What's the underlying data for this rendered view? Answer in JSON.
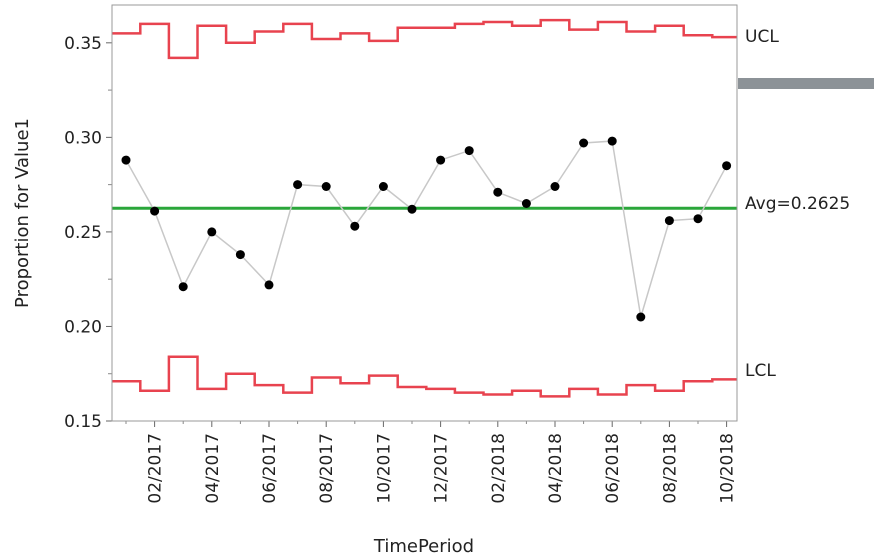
{
  "chart_data": {
    "type": "line",
    "title": "",
    "xlabel": "TimePeriod",
    "ylabel": "Proportion for Value1",
    "ylim": [
      0.15,
      0.37
    ],
    "y_ticks": [
      "0.15",
      "0.20",
      "0.25",
      "0.30",
      "0.35"
    ],
    "y_tick_values": [
      0.15,
      0.2,
      0.25,
      0.3,
      0.35
    ],
    "x_tick_labels": [
      "02/2017",
      "04/2017",
      "06/2017",
      "08/2017",
      "10/2017",
      "12/2017",
      "02/2018",
      "04/2018",
      "06/2018",
      "08/2018",
      "10/2018"
    ],
    "x_tick_indices": [
      1,
      3,
      5,
      7,
      9,
      11,
      13,
      15,
      17,
      19,
      21
    ],
    "periods": [
      "01/2017",
      "02/2017",
      "03/2017",
      "04/2017",
      "05/2017",
      "06/2017",
      "07/2017",
      "08/2017",
      "09/2017",
      "10/2017",
      "11/2017",
      "12/2017",
      "01/2018",
      "02/2018",
      "03/2018",
      "04/2018",
      "05/2018",
      "06/2018",
      "07/2018",
      "08/2018",
      "09/2018",
      "10/2018"
    ],
    "series": [
      {
        "values": [
          0.288,
          0.261,
          0.221,
          0.25,
          0.238,
          0.222,
          0.275,
          0.274,
          0.253,
          0.274,
          0.262,
          0.288,
          0.293,
          0.271,
          0.265,
          0.274,
          0.297,
          0.298,
          0.205,
          0.256,
          0.257,
          0.285
        ]
      }
    ],
    "ucl": [
      0.355,
      0.36,
      0.342,
      0.359,
      0.35,
      0.356,
      0.36,
      0.352,
      0.355,
      0.351,
      0.358,
      0.358,
      0.36,
      0.361,
      0.359,
      0.362,
      0.357,
      0.361,
      0.356,
      0.359,
      0.354,
      0.353
    ],
    "lcl": [
      0.171,
      0.166,
      0.184,
      0.167,
      0.175,
      0.169,
      0.165,
      0.173,
      0.17,
      0.174,
      0.168,
      0.167,
      0.165,
      0.164,
      0.166,
      0.163,
      0.167,
      0.164,
      0.169,
      0.166,
      0.171,
      0.172
    ],
    "avg": 0.2625,
    "labels": {
      "ucl": "UCL",
      "avg": "Avg=0.2625",
      "lcl": "LCL"
    },
    "grid": false,
    "colors": {
      "data_line": "#c8c8c8",
      "points": "#000000",
      "limits": "#e8434f",
      "center": "#2aa63a",
      "frame": "#999999",
      "scrollbar": "#8c9297"
    }
  }
}
